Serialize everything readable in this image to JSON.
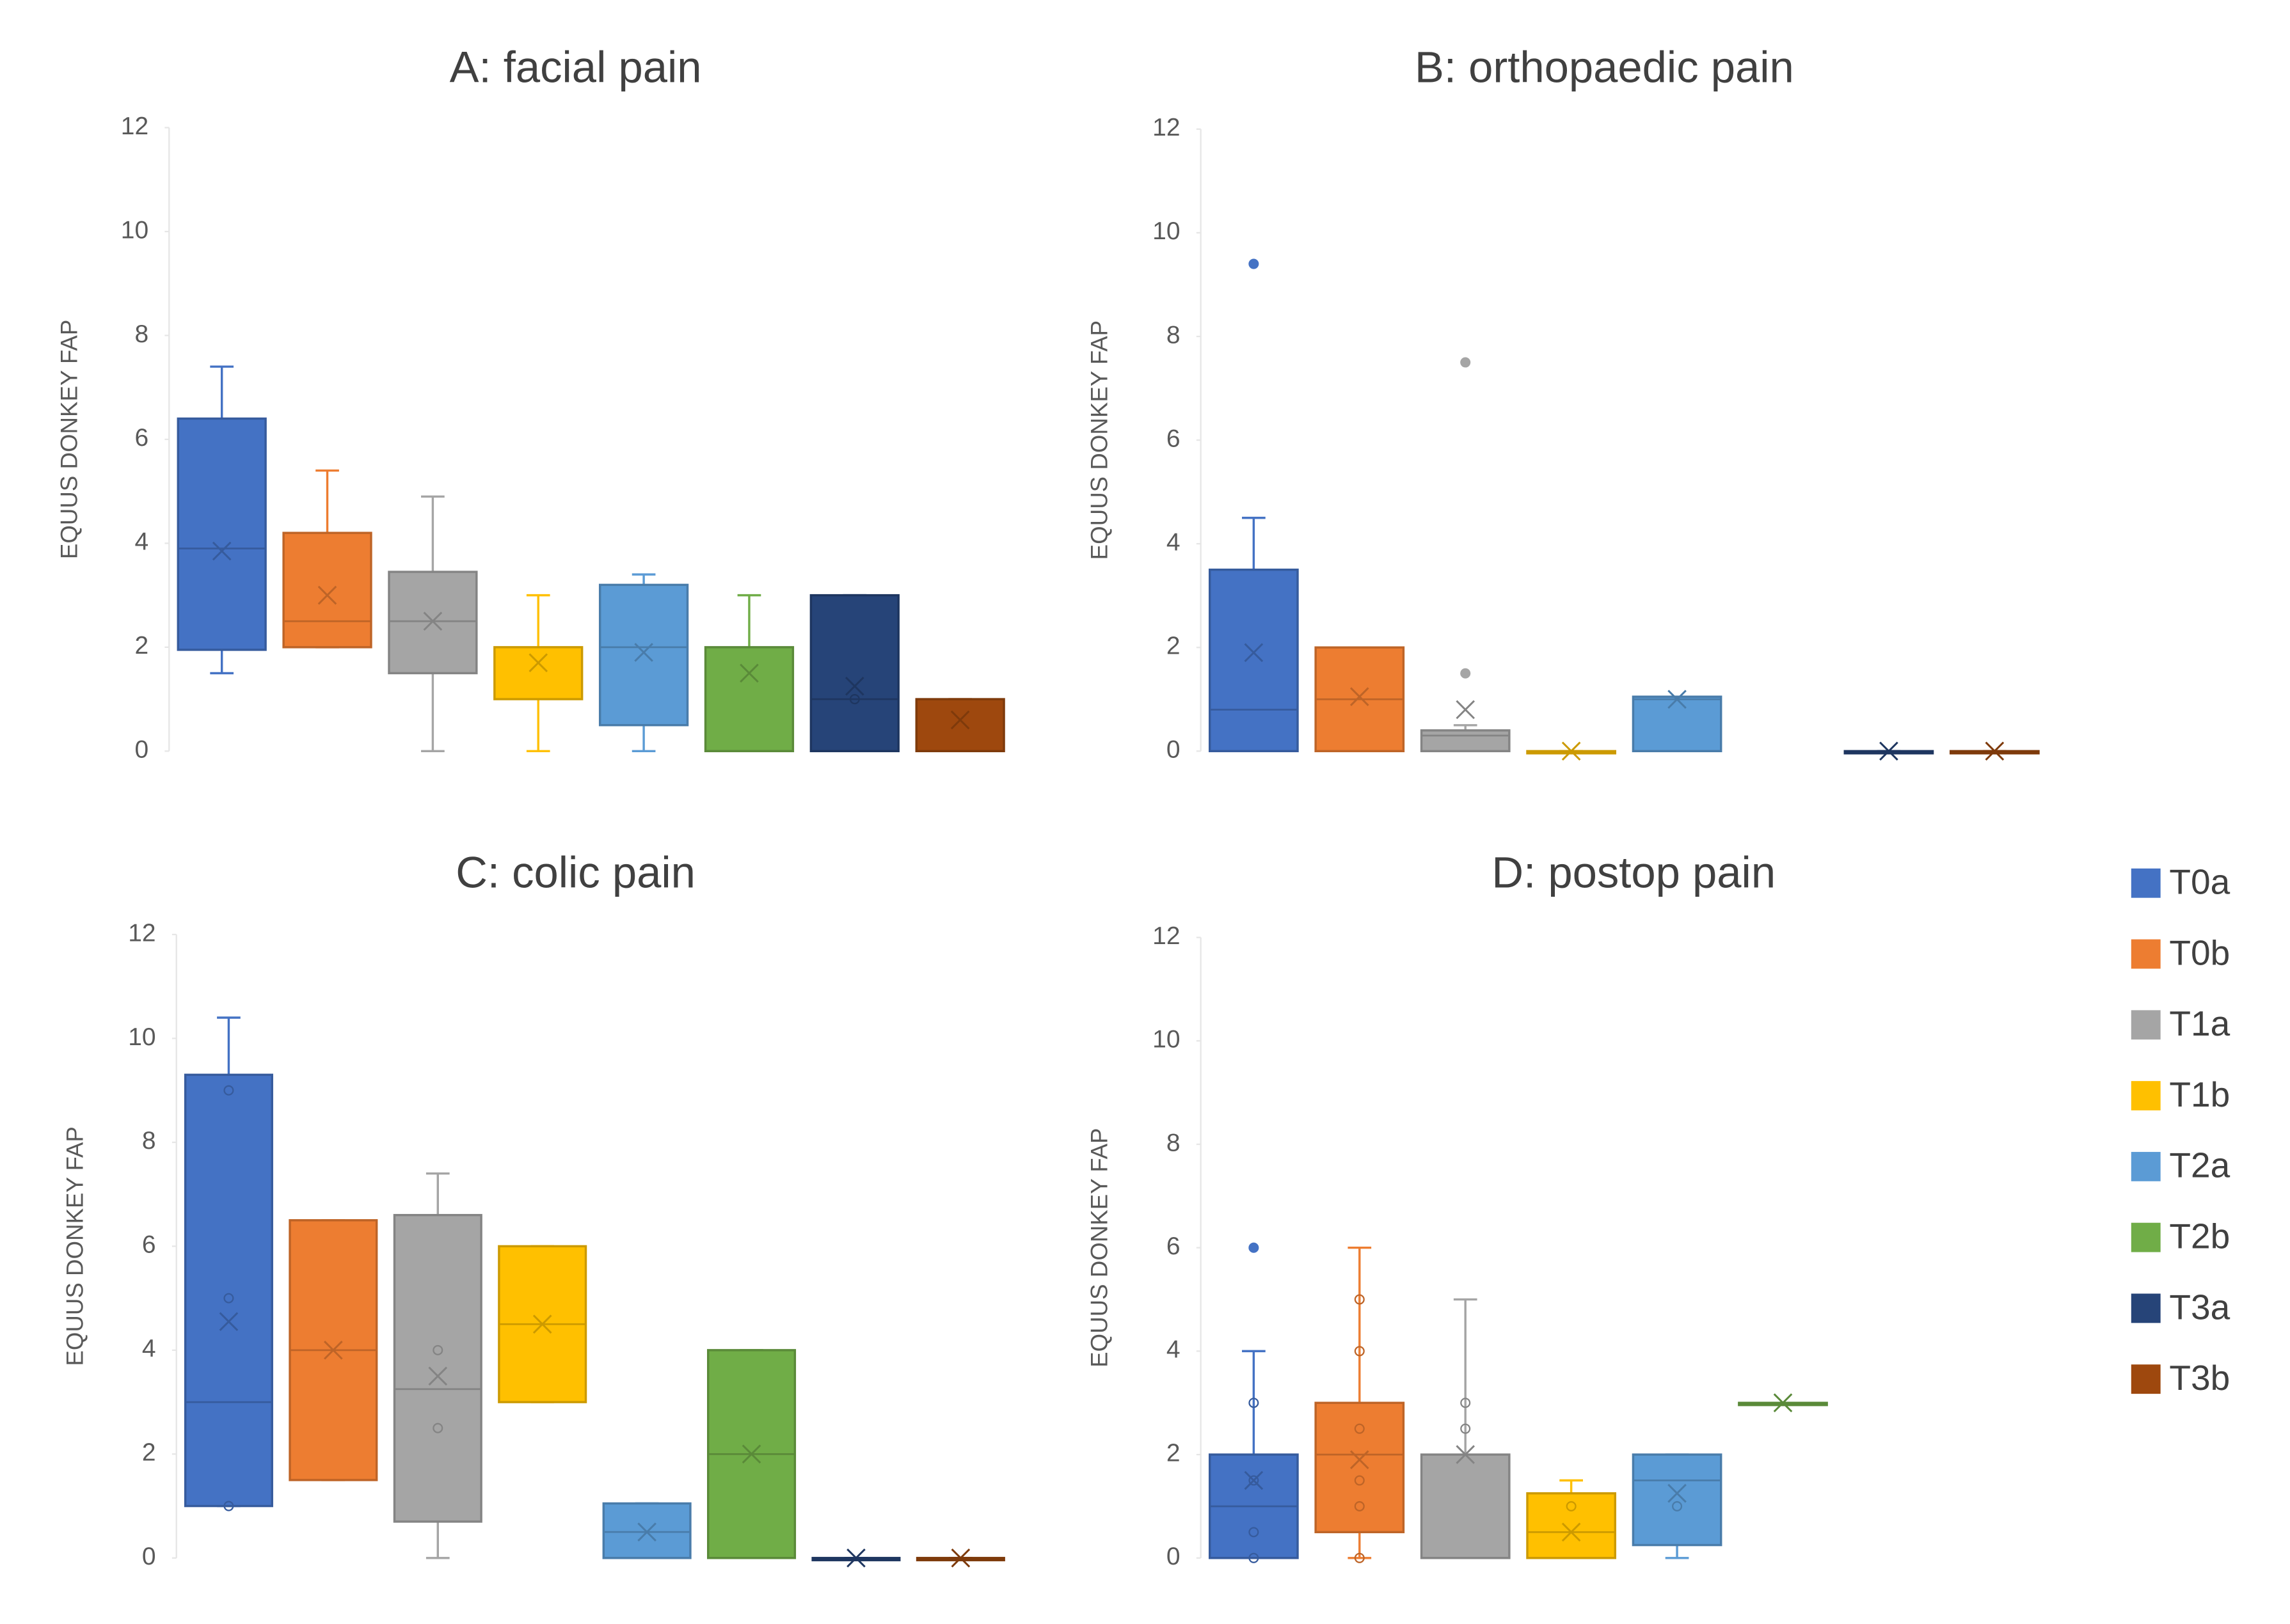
{
  "legend": [
    {
      "name": "T0a",
      "color": "#4472c4"
    },
    {
      "name": "T0b",
      "color": "#ed7d31"
    },
    {
      "name": "T1a",
      "color": "#a5a5a5"
    },
    {
      "name": "T1b",
      "color": "#ffc000"
    },
    {
      "name": "T2a",
      "color": "#5b9bd5"
    },
    {
      "name": "T2b",
      "color": "#70ad47"
    },
    {
      "name": "T3a",
      "color": "#264478"
    },
    {
      "name": "T3b",
      "color": "#9e480e"
    }
  ],
  "chart_data": [
    {
      "type": "box",
      "title": "A: facial pain",
      "y_label": "EQUUS DONKEY FAP",
      "ylim": [
        0,
        12
      ],
      "yticks": [
        0,
        2,
        4,
        6,
        8,
        10,
        12
      ],
      "boxes": [
        {
          "min": 1.5,
          "q1": 1.95,
          "median": 3.9,
          "q3": 6.4,
          "max": 7.4,
          "mean": 3.85,
          "outliers": [],
          "points": []
        },
        {
          "min": 2,
          "q1": 2,
          "median": 2.5,
          "q3": 4.2,
          "max": 5.4,
          "mean": 3,
          "outliers": [],
          "points": []
        },
        {
          "min": 0,
          "q1": 1.5,
          "median": 2.5,
          "q3": 3.45,
          "max": 4.9,
          "mean": 2.5,
          "outliers": [],
          "points": []
        },
        {
          "min": 0,
          "q1": 1,
          "median": 2,
          "q3": 2,
          "max": 3,
          "mean": 1.7,
          "outliers": [],
          "points": []
        },
        {
          "min": 0,
          "q1": 0.5,
          "median": 2,
          "q3": 3.2,
          "max": 3.4,
          "mean": 1.9,
          "outliers": [],
          "points": []
        },
        {
          "min": 0,
          "q1": 0,
          "median": 2,
          "q3": 2,
          "max": 3,
          "mean": 1.5,
          "outliers": [],
          "points": []
        },
        {
          "min": 0,
          "q1": 0,
          "median": 1,
          "q3": 3,
          "max": 3,
          "mean": 1.25,
          "outliers": [],
          "points": [
            1
          ]
        },
        {
          "min": 0,
          "q1": 0,
          "median": 1,
          "q3": 1,
          "max": 1,
          "mean": 0.6,
          "outliers": [],
          "points": []
        }
      ]
    },
    {
      "type": "box",
      "title": "B: orthopaedic pain",
      "y_label": "EQUUS DONKEY FAP",
      "ylim": [
        0,
        12
      ],
      "yticks": [
        0,
        2,
        4,
        6,
        8,
        10,
        12
      ],
      "boxes": [
        {
          "min": 0,
          "q1": 0,
          "median": 0.8,
          "q3": 3.5,
          "max": 4.5,
          "mean": 1.9,
          "outliers": [
            9.4
          ],
          "points": []
        },
        {
          "min": 0,
          "q1": 0,
          "median": 1,
          "q3": 2,
          "max": 2,
          "mean": 1.05,
          "outliers": [],
          "points": []
        },
        {
          "min": 0,
          "q1": 0,
          "median": 0.3,
          "q3": 0.4,
          "max": 0.5,
          "mean": 0.8,
          "outliers": [
            1.5,
            7.5
          ],
          "points": []
        },
        {
          "min": 0,
          "q1": 0,
          "median": 0,
          "q3": 0,
          "max": 0,
          "mean": 0,
          "outliers": [],
          "points": []
        },
        {
          "min": 0,
          "q1": 0,
          "median": 1,
          "q3": 1.05,
          "max": 1.05,
          "mean": 1,
          "outliers": [],
          "points": []
        },
        null,
        {
          "min": 0,
          "q1": 0,
          "median": 0,
          "q3": 0,
          "max": 0,
          "mean": 0,
          "outliers": [],
          "points": []
        },
        {
          "min": 0,
          "q1": 0,
          "median": 0,
          "q3": 0,
          "max": 0,
          "mean": 0,
          "outliers": [],
          "points": []
        }
      ]
    },
    {
      "type": "box",
      "title": "C: colic pain",
      "y_label": "EQUUS DONKEY FAP",
      "ylim": [
        0,
        12
      ],
      "yticks": [
        0,
        2,
        4,
        6,
        8,
        10,
        12
      ],
      "boxes": [
        {
          "min": 1,
          "q1": 1,
          "median": 3,
          "q3": 9.3,
          "max": 10.4,
          "mean": 4.55,
          "outliers": [],
          "points": [
            1,
            5,
            9
          ]
        },
        {
          "min": 1.5,
          "q1": 1.5,
          "median": 4,
          "q3": 6.5,
          "max": 6.5,
          "mean": 4,
          "outliers": [],
          "points": []
        },
        {
          "min": 0,
          "q1": 0.7,
          "median": 3.25,
          "q3": 6.6,
          "max": 7.4,
          "mean": 3.5,
          "outliers": [],
          "points": [
            2.5,
            4
          ]
        },
        {
          "min": 3,
          "q1": 3,
          "median": 4.5,
          "q3": 6,
          "max": 6,
          "mean": 4.5,
          "outliers": [],
          "points": []
        },
        {
          "min": 0,
          "q1": 0,
          "median": 0.5,
          "q3": 1.05,
          "max": 1.05,
          "mean": 0.5,
          "outliers": [],
          "points": []
        },
        {
          "min": 0,
          "q1": 0,
          "median": 2,
          "q3": 4,
          "max": 4,
          "mean": 2,
          "outliers": [],
          "points": []
        },
        {
          "min": 0,
          "q1": 0,
          "median": 0,
          "q3": 0,
          "max": 0,
          "mean": 0,
          "outliers": [],
          "points": []
        },
        {
          "min": 0,
          "q1": 0,
          "median": 0,
          "q3": 0,
          "max": 0,
          "mean": 0,
          "outliers": [],
          "points": []
        }
      ]
    },
    {
      "type": "box",
      "title": "D: postop pain",
      "y_label": "EQUUS DONKEY FAP",
      "ylim": [
        0,
        12
      ],
      "yticks": [
        0,
        2,
        4,
        6,
        8,
        10,
        12
      ],
      "boxes": [
        {
          "min": 0,
          "q1": 0,
          "median": 1,
          "q3": 2,
          "max": 4,
          "mean": 1.5,
          "outliers": [
            6
          ],
          "points": [
            0,
            0.5,
            1.5,
            3
          ]
        },
        {
          "min": 0,
          "q1": 0.5,
          "median": 2,
          "q3": 3,
          "max": 6,
          "mean": 1.9,
          "outliers": [],
          "points": [
            0,
            1,
            1.5,
            2.5,
            4,
            5
          ]
        },
        {
          "min": 0,
          "q1": 0,
          "median": 2,
          "q3": 2,
          "max": 5,
          "mean": 2,
          "outliers": [],
          "points": [
            2.5,
            3
          ]
        },
        {
          "min": 0,
          "q1": 0,
          "median": 0.5,
          "q3": 1.25,
          "max": 1.5,
          "mean": 0.5,
          "outliers": [],
          "points": [
            1
          ]
        },
        {
          "min": 0,
          "q1": 0.25,
          "median": 1.5,
          "q3": 2,
          "max": 2,
          "mean": 1.25,
          "outliers": [],
          "points": [
            1
          ]
        },
        {
          "min": 3,
          "q1": 3,
          "median": 3,
          "q3": 3,
          "max": 3,
          "mean": 3,
          "outliers": [],
          "points": []
        },
        null,
        null
      ]
    }
  ]
}
